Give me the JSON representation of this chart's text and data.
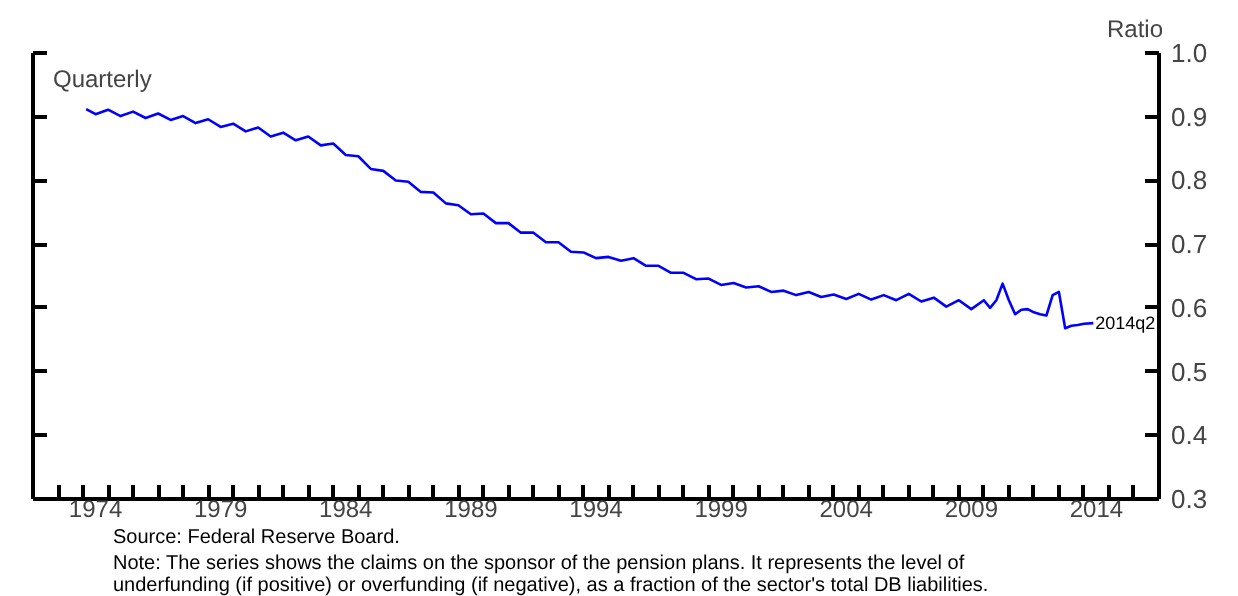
{
  "chart_data": {
    "type": "line",
    "subtitle": "Quarterly",
    "ylabel": "Ratio",
    "annotations": [
      {
        "text": "2014q2",
        "x": 2014.375,
        "y": 0.576
      },
      "Source: Federal Reserve Board.",
      "Note: The series shows the claims on the sponsor of the pension plans. It represents the level of underfunding (if positive) or overfunding (if negative), as a fraction of the sector's total DB liabilities."
    ],
    "x": [
      1974.125,
      1974.5,
      1975.0,
      1975.5,
      1976.0,
      1976.5,
      1977.0,
      1977.5,
      1978.0,
      1978.5,
      1979.0,
      1979.5,
      1980.0,
      1980.5,
      1981.0,
      1981.5,
      1982.0,
      1982.5,
      1983.0,
      1983.5,
      1984.0,
      1984.5,
      1985.0,
      1985.5,
      1986.0,
      1986.5,
      1987.0,
      1987.5,
      1988.0,
      1988.5,
      1989.0,
      1989.5,
      1990.0,
      1990.5,
      1991.0,
      1991.5,
      1992.0,
      1992.5,
      1993.0,
      1993.5,
      1994.0,
      1994.5,
      1995.0,
      1995.5,
      1996.0,
      1996.5,
      1997.0,
      1997.5,
      1998.0,
      1998.5,
      1999.0,
      1999.5,
      2000.0,
      2000.5,
      2001.0,
      2001.5,
      2002.0,
      2002.5,
      2003.0,
      2003.5,
      2004.0,
      2004.5,
      2005.0,
      2005.5,
      2006.0,
      2006.5,
      2007.0,
      2007.5,
      2008.0,
      2008.5,
      2009.0,
      2009.5,
      2010.0,
      2010.25,
      2010.5,
      2010.75,
      2011.0,
      2011.25,
      2011.5,
      2011.75,
      2012.0,
      2012.25,
      2012.5,
      2012.75,
      2013.0,
      2013.25,
      2013.5,
      2013.75,
      2014.0,
      2014.375
    ],
    "series": [
      {
        "color": "#0000ff",
        "values": [
          0.912,
          0.904,
          0.911,
          0.901,
          0.908,
          0.898,
          0.905,
          0.895,
          0.901,
          0.89,
          0.896,
          0.884,
          0.889,
          0.877,
          0.883,
          0.869,
          0.875,
          0.863,
          0.869,
          0.855,
          0.858,
          0.84,
          0.838,
          0.818,
          0.815,
          0.8,
          0.798,
          0.782,
          0.781,
          0.764,
          0.761,
          0.747,
          0.748,
          0.733,
          0.733,
          0.718,
          0.718,
          0.703,
          0.703,
          0.688,
          0.687,
          0.678,
          0.68,
          0.674,
          0.678,
          0.666,
          0.666,
          0.655,
          0.655,
          0.645,
          0.646,
          0.636,
          0.639,
          0.632,
          0.634,
          0.625,
          0.627,
          0.62,
          0.625,
          0.617,
          0.621,
          0.614,
          0.622,
          0.613,
          0.62,
          0.612,
          0.622,
          0.61,
          0.616,
          0.602,
          0.612,
          0.598,
          0.612,
          0.6,
          0.612,
          0.638,
          0.612,
          0.59,
          0.597,
          0.598,
          0.593,
          0.59,
          0.588,
          0.62,
          0.625,
          0.568,
          0.572,
          0.573,
          0.575,
          0.576
        ]
      }
    ],
    "xlim": [
      1972,
      2017
    ],
    "xticks": [
      {
        "value": 1972,
        "label": null
      },
      {
        "value": 1973,
        "label": null
      },
      {
        "value": 1974,
        "label": null
      },
      {
        "value": 1974.5,
        "label": "1974"
      },
      {
        "value": 1975,
        "label": null
      },
      {
        "value": 1976,
        "label": null
      },
      {
        "value": 1977,
        "label": null
      },
      {
        "value": 1978,
        "label": null
      },
      {
        "value": 1979,
        "label": null
      },
      {
        "value": 1979.5,
        "label": "1979"
      },
      {
        "value": 1980,
        "label": null
      },
      {
        "value": 1981,
        "label": null
      },
      {
        "value": 1982,
        "label": null
      },
      {
        "value": 1983,
        "label": null
      },
      {
        "value": 1984,
        "label": null
      },
      {
        "value": 1984.5,
        "label": "1984"
      },
      {
        "value": 1985,
        "label": null
      },
      {
        "value": 1986,
        "label": null
      },
      {
        "value": 1987,
        "label": null
      },
      {
        "value": 1988,
        "label": null
      },
      {
        "value": 1989,
        "label": null
      },
      {
        "value": 1989.5,
        "label": "1989"
      },
      {
        "value": 1990,
        "label": null
      },
      {
        "value": 1991,
        "label": null
      },
      {
        "value": 1992,
        "label": null
      },
      {
        "value": 1993,
        "label": null
      },
      {
        "value": 1994,
        "label": null
      },
      {
        "value": 1994.5,
        "label": "1994"
      },
      {
        "value": 1995,
        "label": null
      },
      {
        "value": 1996,
        "label": null
      },
      {
        "value": 1997,
        "label": null
      },
      {
        "value": 1998,
        "label": null
      },
      {
        "value": 1999,
        "label": null
      },
      {
        "value": 1999.5,
        "label": "1999"
      },
      {
        "value": 2000,
        "label": null
      },
      {
        "value": 2001,
        "label": null
      },
      {
        "value": 2002,
        "label": null
      },
      {
        "value": 2003,
        "label": null
      },
      {
        "value": 2004,
        "label": null
      },
      {
        "value": 2004.5,
        "label": "2004"
      },
      {
        "value": 2005,
        "label": null
      },
      {
        "value": 2006,
        "label": null
      },
      {
        "value": 2007,
        "label": null
      },
      {
        "value": 2008,
        "label": null
      },
      {
        "value": 2009,
        "label": null
      },
      {
        "value": 2009.5,
        "label": "2009"
      },
      {
        "value": 2010,
        "label": null
      },
      {
        "value": 2011,
        "label": null
      },
      {
        "value": 2012,
        "label": null
      },
      {
        "value": 2013,
        "label": null
      },
      {
        "value": 2014,
        "label": null
      },
      {
        "value": 2014.5,
        "label": "2014"
      },
      {
        "value": 2015,
        "label": null
      },
      {
        "value": 2016,
        "label": null
      }
    ],
    "ylim": [
      0.3,
      1.0
    ],
    "yticks": [
      {
        "value": 0.3,
        "label": "0.3"
      },
      {
        "value": 0.4,
        "label": "0.4"
      },
      {
        "value": 0.5,
        "label": "0.5"
      },
      {
        "value": 0.6,
        "label": "0.6"
      },
      {
        "value": 0.7,
        "label": "0.7"
      },
      {
        "value": 0.8,
        "label": "0.8"
      },
      {
        "value": 0.9,
        "label": "0.9"
      },
      {
        "value": 1.0,
        "label": "1.0"
      }
    ],
    "grid": false,
    "marker": "none",
    "line_style": "solid"
  }
}
